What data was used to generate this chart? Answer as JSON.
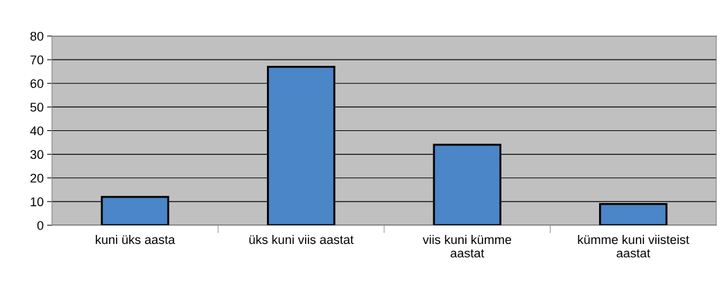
{
  "chart_data": {
    "type": "bar",
    "categories": [
      "kuni üks aasta",
      "üks kuni viis aastat",
      "viis kuni kümme aastat",
      "kümme kuni viisteist aastat"
    ],
    "values": [
      12,
      67,
      34,
      9
    ],
    "color": "#4a86c8",
    "ylim": [
      0,
      80
    ],
    "yticks": [
      0,
      10,
      20,
      30,
      40,
      50,
      60,
      70,
      80
    ],
    "grid": "y",
    "legend": false
  }
}
